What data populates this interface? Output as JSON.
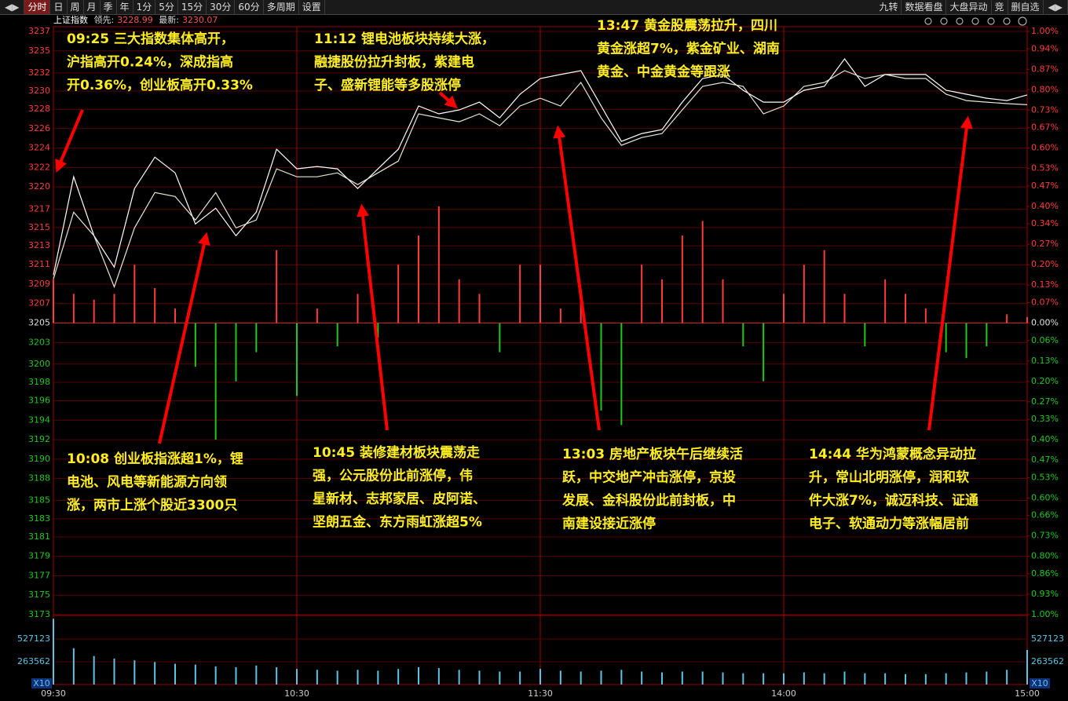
{
  "toolbar": {
    "left": [
      "分时",
      "日",
      "周",
      "月",
      "季",
      "年",
      "1分",
      "5分",
      "15分",
      "30分",
      "60分",
      "多周期",
      "设置"
    ],
    "active_index": 0,
    "right": [
      "九转",
      "数据看盘",
      "大盘异动",
      "竞",
      "删自选"
    ]
  },
  "info": {
    "name": "上证指数",
    "lead_label": "领先:",
    "lead": 3228.99,
    "last_label": "最新:",
    "last": 3230.07
  },
  "chart_data": {
    "type": "line",
    "x": [
      "09:30",
      "09:35",
      "09:40",
      "09:45",
      "09:50",
      "09:55",
      "10:00",
      "10:05",
      "10:10",
      "10:15",
      "10:20",
      "10:25",
      "10:30",
      "10:35",
      "10:40",
      "10:45",
      "10:50",
      "10:55",
      "11:00",
      "11:05",
      "11:10",
      "11:15",
      "11:20",
      "11:25",
      "11:30",
      "13:05",
      "13:10",
      "13:15",
      "13:20",
      "13:25",
      "13:30",
      "13:35",
      "13:40",
      "13:45",
      "13:50",
      "13:55",
      "14:00",
      "14:05",
      "14:10",
      "14:15",
      "14:20",
      "14:25",
      "14:30",
      "14:35",
      "14:40",
      "14:45",
      "14:50",
      "14:55",
      "15:00"
    ],
    "series": [
      {
        "color": "#ffffff",
        "values": [
          3210.27,
          3221.07,
          3214.59,
          3211.14,
          3219.78,
          3223.23,
          3221.5,
          3215.89,
          3217.62,
          3214.59,
          3217.18,
          3224.1,
          3221.94,
          3222.2,
          3221.94,
          3219.78,
          3221.94,
          3224.1,
          3228.85,
          3227.99,
          3228.42,
          3229.28,
          3227.55,
          3230.15,
          3231.87,
          3232.31,
          3232.74,
          3228.85,
          3224.96,
          3225.83,
          3226.26,
          3229.28,
          3231.87,
          3232.31,
          3230.58,
          3229.28,
          3229.28,
          3230.58,
          3231.01,
          3234.03,
          3231.01,
          3232.31,
          3232.31,
          3232.31,
          3230.58,
          3230.15,
          3229.71,
          3229.45,
          3230.07
        ]
      },
      {
        "color": "#e6e6d2",
        "values": [
          3209.84,
          3217.18,
          3214.59,
          3208.97,
          3215.46,
          3219.34,
          3218.91,
          3216.32,
          3219.34,
          3215.46,
          3216.32,
          3221.94,
          3221.07,
          3221.07,
          3221.5,
          3220.21,
          3221.5,
          3222.8,
          3227.99,
          3227.55,
          3227.12,
          3227.99,
          3226.69,
          3228.85,
          3229.71,
          3228.85,
          3231.44,
          3227.55,
          3224.53,
          3225.39,
          3225.83,
          3228.42,
          3231.01,
          3231.44,
          3231.01,
          3227.99,
          3228.85,
          3231.01,
          3231.44,
          3232.74,
          3231.87,
          3232.31,
          3231.87,
          3231.87,
          3230.15,
          3229.45,
          3229.28,
          3229.11,
          3228.99
        ]
      }
    ],
    "bars": {
      "axis": "y2",
      "up_color": "#ff3c3c",
      "down_color": "#1ec81e",
      "values": [
        0.15,
        0.1,
        0.08,
        0.1,
        0.2,
        0.12,
        0.05,
        -0.15,
        -0.4,
        -0.2,
        -0.1,
        0.25,
        -0.25,
        0.05,
        -0.08,
        0.1,
        -0.05,
        0.2,
        0.3,
        0.4,
        0.15,
        0.1,
        -0.1,
        0.2,
        0.2,
        0.05,
        0.1,
        -0.3,
        -0.35,
        0.2,
        0.15,
        0.3,
        0.35,
        0.15,
        -0.08,
        -0.2,
        0.1,
        0.2,
        0.25,
        0.1,
        -0.08,
        0.15,
        0.1,
        0.05,
        -0.1,
        -0.12,
        -0.08,
        0.03,
        0.02
      ]
    },
    "ylim": [
      3172.95,
      3237.05
    ],
    "yticks": [
      {
        "value": 3237.05,
        "label": "3237"
      },
      {
        "value": 3234.91,
        "label": "3235"
      },
      {
        "value": 3232.49,
        "label": "3232"
      },
      {
        "value": 3230.49,
        "label": "3230"
      },
      {
        "value": 3228.49,
        "label": "3228"
      },
      {
        "value": 3226.37,
        "label": "3226"
      },
      {
        "value": 3224.23,
        "label": "3224"
      },
      {
        "value": 3222.09,
        "label": "3222"
      },
      {
        "value": 3219.96,
        "label": "3220"
      },
      {
        "value": 3217.49,
        "label": "3217"
      },
      {
        "value": 3215.49,
        "label": "3215"
      },
      {
        "value": 3213.49,
        "label": "3213"
      },
      {
        "value": 3211.41,
        "label": "3211"
      },
      {
        "value": 3209.27,
        "label": "3209"
      },
      {
        "value": 3207.14,
        "label": "3207"
      },
      {
        "value": 3205,
        "label": "3205"
      },
      {
        "value": 3202.86,
        "label": "3203"
      },
      {
        "value": 3200.49,
        "label": "3200"
      },
      {
        "value": 3198.49,
        "label": "3198"
      },
      {
        "value": 3196.45,
        "label": "3196"
      },
      {
        "value": 3194.32,
        "label": "3194"
      },
      {
        "value": 3192.18,
        "label": "3192"
      },
      {
        "value": 3190.04,
        "label": "3190"
      },
      {
        "value": 3187.91,
        "label": "3188"
      },
      {
        "value": 3185.49,
        "label": "3185"
      },
      {
        "value": 3183.49,
        "label": "3183"
      },
      {
        "value": 3181.49,
        "label": "3181"
      },
      {
        "value": 3179.36,
        "label": "3179"
      },
      {
        "value": 3177.22,
        "label": "3177"
      },
      {
        "value": 3175.09,
        "label": "3175"
      },
      {
        "value": 3172.95,
        "label": "3173"
      }
    ],
    "y2lim": [
      -1,
      1
    ],
    "y2ticks": [
      {
        "value": 1,
        "label": "1.00%"
      },
      {
        "value": 0.94,
        "label": "0.94%"
      },
      {
        "value": 0.87,
        "label": "0.87%"
      },
      {
        "value": 0.8,
        "label": "0.80%"
      },
      {
        "value": 0.73,
        "label": "0.73%"
      },
      {
        "value": 0.67,
        "label": "0.67%"
      },
      {
        "value": 0.6,
        "label": "0.60%"
      },
      {
        "value": 0.53,
        "label": "0.53%"
      },
      {
        "value": 0.47,
        "label": "0.47%"
      },
      {
        "value": 0.4,
        "label": "0.40%"
      },
      {
        "value": 0.34,
        "label": "0.34%"
      },
      {
        "value": 0.27,
        "label": "0.27%"
      },
      {
        "value": 0.2,
        "label": "0.20%"
      },
      {
        "value": 0.13,
        "label": "0.13%"
      },
      {
        "value": 0.07,
        "label": "0.07%"
      },
      {
        "value": 0,
        "label": "0.00%"
      },
      {
        "value": -0.06,
        "label": "0.06%"
      },
      {
        "value": -0.13,
        "label": "0.13%"
      },
      {
        "value": -0.2,
        "label": "0.20%"
      },
      {
        "value": -0.27,
        "label": "0.27%"
      },
      {
        "value": -0.33,
        "label": "0.33%"
      },
      {
        "value": -0.4,
        "label": "0.40%"
      },
      {
        "value": -0.47,
        "label": "0.47%"
      },
      {
        "value": -0.53,
        "label": "0.53%"
      },
      {
        "value": -0.6,
        "label": "0.60%"
      },
      {
        "value": -0.66,
        "label": "0.66%"
      },
      {
        "value": -0.73,
        "label": "0.73%"
      },
      {
        "value": -0.8,
        "label": "0.80%"
      },
      {
        "value": -0.86,
        "label": "0.86%"
      },
      {
        "value": -0.93,
        "label": "0.93%"
      },
      {
        "value": -1,
        "label": "1.00%"
      }
    ],
    "xticks": [
      "09:30",
      "10:30",
      "11:30",
      "14:00",
      "15:00"
    ],
    "grid": true,
    "volume": {
      "color": "#5ec4e4",
      "ylim": [
        0,
        790000
      ],
      "yticks": [
        263562,
        527123
      ],
      "unit": "X10",
      "values": [
        760000,
        420000,
        330000,
        300000,
        280000,
        260000,
        240000,
        230000,
        210000,
        200000,
        220000,
        200000,
        180000,
        170000,
        160000,
        170000,
        160000,
        180000,
        200000,
        190000,
        170000,
        160000,
        150000,
        150000,
        180000,
        160000,
        150000,
        160000,
        170000,
        150000,
        140000,
        150000,
        150000,
        140000,
        130000,
        130000,
        130000,
        140000,
        130000,
        150000,
        130000,
        130000,
        120000,
        120000,
        130000,
        140000,
        150000,
        170000,
        400000
      ]
    },
    "annotations": [
      [
        "09:25 三大指数集体高开，",
        "沪指高开0.24%，深成指高",
        "开0.36%，创业板高开0.33%"
      ],
      [
        "11:12 锂电池板块持续大涨，",
        "融捷股份拉升封板，紫建电",
        "子、盛新锂能等多股涨停"
      ],
      [
        "13:47 黄金股震荡拉升，四川",
        "黄金涨超7%，紫金矿业、湖南",
        "黄金、中金黄金等跟涨"
      ],
      [
        "10:08 创业板指涨超1%，锂",
        "电池、风电等新能源方向领",
        "涨，两市上涨个股近3300只"
      ],
      [
        "10:45 装修建材板块震荡走",
        "强，公元股份此前涨停，伟",
        "星新材、志邦家居、皮阿诺、",
        "坚朗五金、东方雨虹涨超5%"
      ],
      [
        "13:03 房地产板块午后继续活",
        "跃，中交地产冲击涨停，京投",
        "发展、金科股份此前封板，中",
        "南建设接近涨停"
      ],
      [
        "14:44 华为鸿蒙概念异动拉",
        "升，常山北明涨停，润和软",
        "件大涨7%，诚迈科技、证通",
        "电子、软通动力等涨幅居前"
      ]
    ]
  }
}
